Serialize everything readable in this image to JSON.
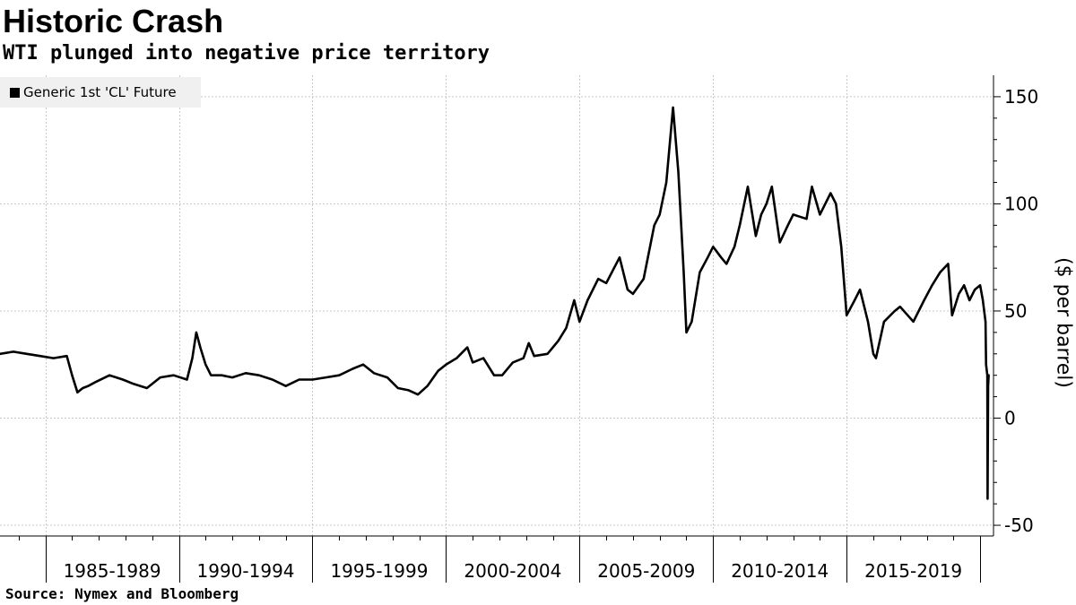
{
  "header": {
    "title": "Historic Crash",
    "subtitle": "WTI plunged into negative price territory"
  },
  "footer": {
    "source": "Source: Nymex and Bloomberg"
  },
  "chart_data": {
    "type": "line",
    "title": "Historic Crash",
    "subtitle": "WTI plunged into negative price territory",
    "xlabel": "",
    "ylabel": "($ per barrel)",
    "ylim": [
      -55,
      160
    ],
    "xlim": [
      1983.3,
      2020.5
    ],
    "grid": true,
    "legend_position": "top-left",
    "y_ticks": [
      {
        "value": 150,
        "label": "150"
      },
      {
        "value": 100,
        "label": "100"
      },
      {
        "value": 50,
        "label": "50"
      },
      {
        "value": 0,
        "label": "0"
      },
      {
        "value": -50,
        "label": "-50"
      }
    ],
    "x_periods": [
      {
        "label": "1985-1989",
        "start": 1985,
        "end": 1990
      },
      {
        "label": "1990-1994",
        "start": 1990,
        "end": 1995
      },
      {
        "label": "1995-1999",
        "start": 1995,
        "end": 2000
      },
      {
        "label": "2000-2004",
        "start": 2000,
        "end": 2005
      },
      {
        "label": "2005-2009",
        "start": 2005,
        "end": 2010
      },
      {
        "label": "2010-2014",
        "start": 2010,
        "end": 2015
      },
      {
        "label": "2015-2019",
        "start": 2015,
        "end": 2020
      }
    ],
    "x_year_ticks": [
      1984,
      1985,
      1990,
      1995,
      2000,
      2005,
      2010,
      2015,
      2020
    ],
    "series": [
      {
        "name": "Generic 1st 'CL' Future",
        "color": "#000000",
        "x": [
          1983.3,
          1983.8,
          1984.3,
          1984.8,
          1985.3,
          1985.8,
          1986.0,
          1986.2,
          1986.4,
          1986.6,
          1986.9,
          1987.4,
          1987.9,
          1988.3,
          1988.8,
          1989.3,
          1989.8,
          1990.3,
          1990.5,
          1990.65,
          1990.8,
          1991.0,
          1991.2,
          1991.6,
          1992.0,
          1992.5,
          1993.0,
          1993.5,
          1994.0,
          1994.5,
          1995.0,
          1995.5,
          1996.0,
          1996.5,
          1996.9,
          1997.3,
          1997.8,
          1998.2,
          1998.6,
          1998.95,
          1999.3,
          1999.7,
          2000.0,
          2000.4,
          2000.8,
          2001.0,
          2001.4,
          2001.8,
          2002.1,
          2002.5,
          2002.9,
          2003.1,
          2003.3,
          2003.8,
          2004.2,
          2004.5,
          2004.8,
          2005.0,
          2005.3,
          2005.7,
          2006.0,
          2006.5,
          2006.8,
          2007.0,
          2007.4,
          2007.8,
          2008.0,
          2008.25,
          2008.5,
          2008.7,
          2008.9,
          2009.0,
          2009.2,
          2009.5,
          2009.8,
          2010.0,
          2010.3,
          2010.5,
          2010.8,
          2011.0,
          2011.3,
          2011.6,
          2011.8,
          2012.0,
          2012.2,
          2012.5,
          2012.8,
          2013.0,
          2013.5,
          2013.7,
          2014.0,
          2014.4,
          2014.6,
          2014.8,
          2015.0,
          2015.3,
          2015.5,
          2015.8,
          2016.0,
          2016.1,
          2016.4,
          2016.8,
          2017.0,
          2017.5,
          2017.9,
          2018.2,
          2018.5,
          2018.8,
          2018.95,
          2019.2,
          2019.4,
          2019.6,
          2019.8,
          2020.0,
          2020.1,
          2020.2,
          2020.22,
          2020.27,
          2020.28,
          2020.3,
          2020.32
        ],
        "values": [
          30,
          31,
          30,
          29,
          28,
          29,
          20,
          12,
          14,
          15,
          17,
          20,
          18,
          16,
          14,
          19,
          20,
          18,
          28,
          40,
          33,
          25,
          20,
          20,
          19,
          21,
          20,
          18,
          15,
          18,
          18,
          19,
          20,
          23,
          25,
          21,
          19,
          14,
          13,
          11,
          15,
          22,
          25,
          28,
          33,
          26,
          28,
          20,
          20,
          26,
          28,
          35,
          29,
          30,
          36,
          42,
          55,
          45,
          55,
          65,
          63,
          75,
          60,
          58,
          65,
          90,
          95,
          110,
          145,
          115,
          68,
          40,
          45,
          68,
          75,
          80,
          75,
          72,
          80,
          90,
          108,
          85,
          95,
          100,
          108,
          82,
          90,
          95,
          93,
          108,
          95,
          105,
          100,
          80,
          48,
          55,
          60,
          45,
          30,
          28,
          45,
          50,
          52,
          45,
          55,
          62,
          68,
          72,
          48,
          58,
          62,
          55,
          60,
          62,
          55,
          45,
          25,
          20,
          -37.6,
          15,
          20
        ]
      }
    ]
  }
}
